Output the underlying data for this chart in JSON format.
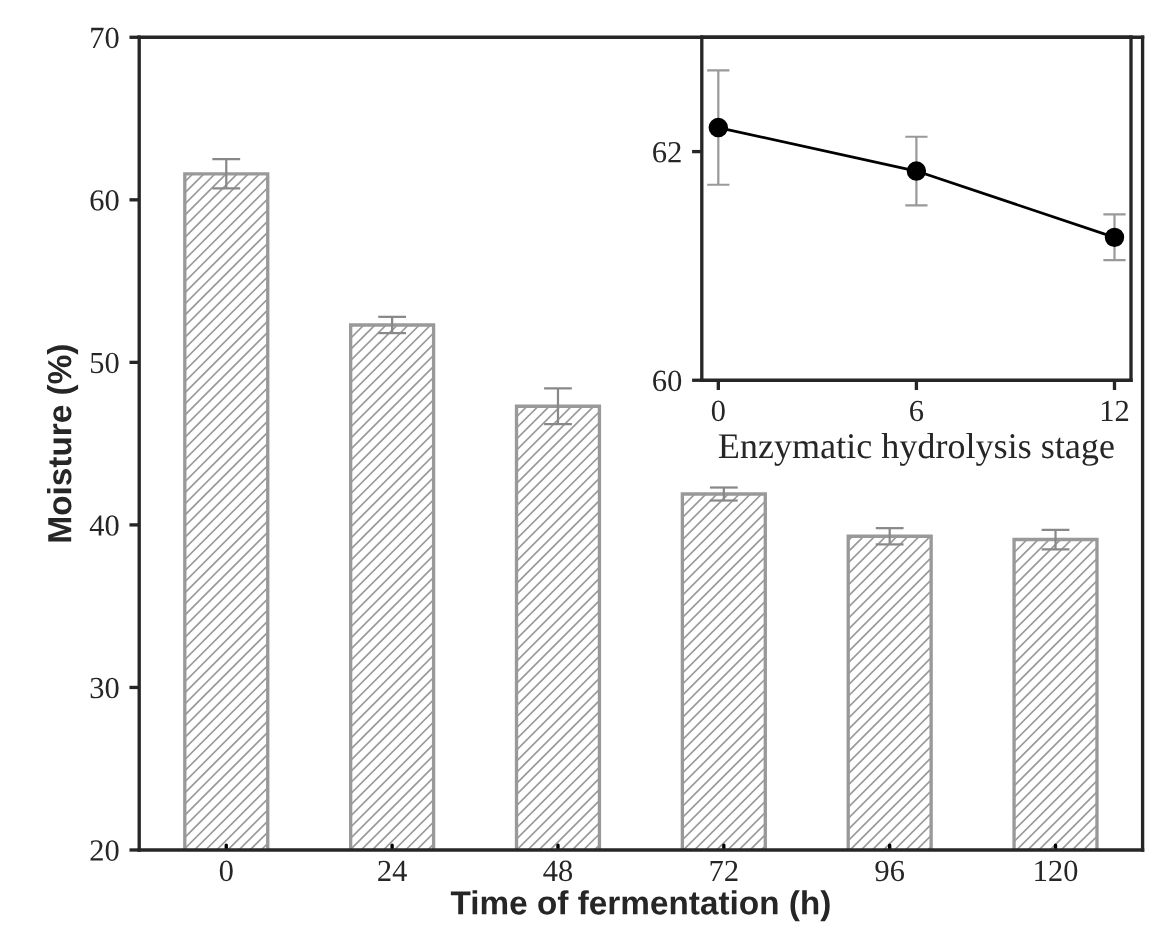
{
  "chart_data": [
    {
      "type": "bar",
      "xlabel": "Time of fermentation (h)",
      "ylabel": "Moisture (%)",
      "categories": [
        "0",
        "24",
        "48",
        "72",
        "96",
        "120"
      ],
      "values": [
        61.6,
        52.3,
        47.3,
        41.9,
        39.3,
        39.1
      ],
      "errors": [
        0.9,
        0.5,
        1.1,
        0.4,
        0.5,
        0.6
      ],
      "color": "#999999",
      "ylim": [
        20,
        70
      ],
      "yticks": [
        20,
        30,
        40,
        50,
        60,
        70
      ],
      "legend": false
    },
    {
      "type": "line",
      "xlabel": "Enzymatic hydrolysis stage",
      "x": [
        0,
        6,
        12
      ],
      "values": [
        62.21,
        61.83,
        61.25
      ],
      "errors": [
        0.5,
        0.3,
        0.2
      ],
      "color": "#000000",
      "marker": "circle",
      "line_style": "solid",
      "xlim": [
        -0.5,
        12.5
      ],
      "xticks": [
        0,
        6,
        12
      ],
      "ylim": [
        60,
        63
      ],
      "yticks": [
        60,
        62
      ],
      "legend": false
    }
  ]
}
